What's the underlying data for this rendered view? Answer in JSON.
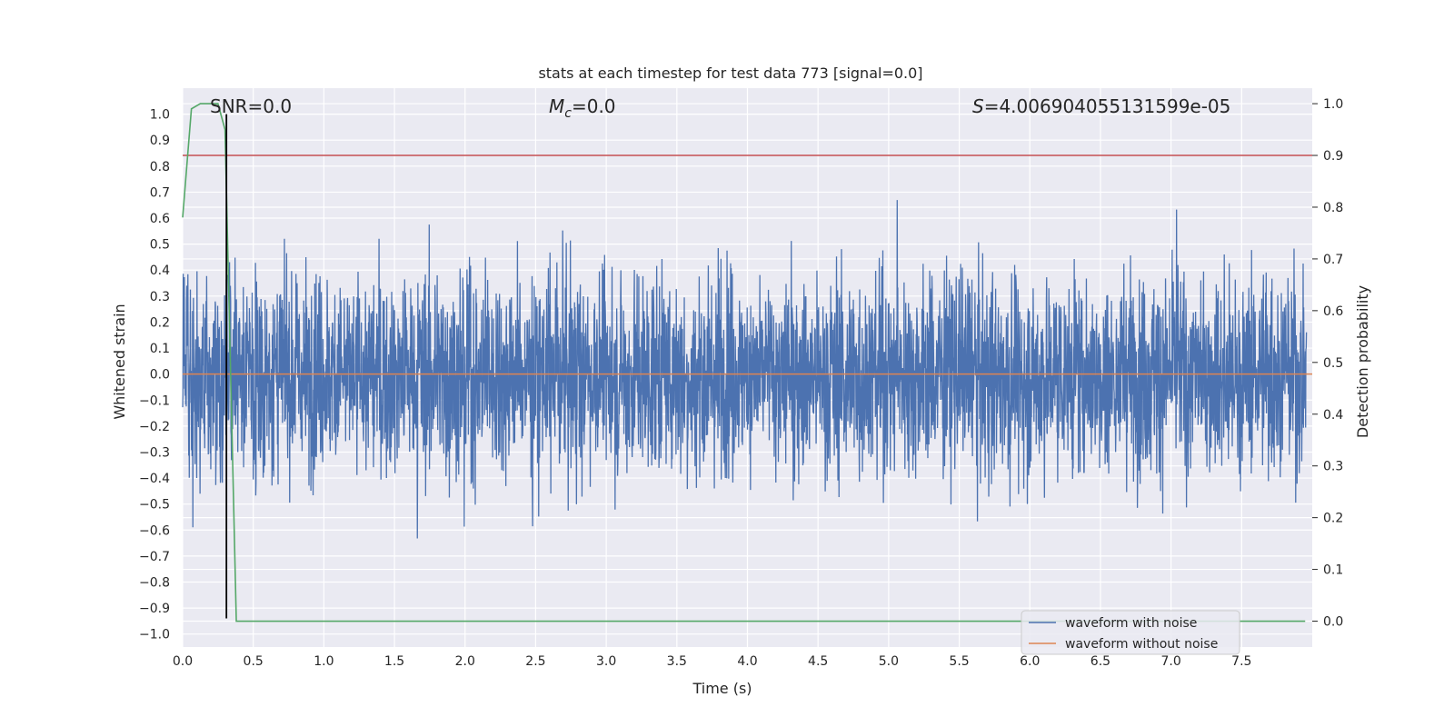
{
  "chart_data": {
    "type": "line",
    "title": "stats at each timestep for test data 773 [signal=0.0]",
    "xlabel": "Time (s)",
    "ylabel": "Whitened strain",
    "y2label": "Detection probability",
    "xlim": [
      0.0,
      8.0
    ],
    "ylim": [
      -1.05,
      1.1
    ],
    "y2lim": [
      -0.05,
      1.03
    ],
    "x_ticks": [
      "0.0",
      "0.5",
      "1.0",
      "1.5",
      "2.0",
      "2.5",
      "3.0",
      "3.5",
      "4.0",
      "4.5",
      "5.0",
      "5.5",
      "6.0",
      "6.5",
      "7.0",
      "7.5"
    ],
    "y_ticks": [
      "1.0",
      "0.9",
      "0.8",
      "0.7",
      "0.6",
      "0.5",
      "0.4",
      "0.3",
      "0.2",
      "0.1",
      "0.0",
      "−0.1",
      "−0.2",
      "−0.3",
      "−0.4",
      "−0.5",
      "−0.6",
      "−0.7",
      "−0.8",
      "−0.9",
      "−1.0"
    ],
    "y2_ticks": [
      "1.0",
      "0.9",
      "0.8",
      "0.7",
      "0.6",
      "0.5",
      "0.4",
      "0.3",
      "0.2",
      "0.1",
      "0.0"
    ],
    "annotations": {
      "snr": "SNR=0.0",
      "mc_sym": "M",
      "mc_sub": "c",
      "mc_val": "=0.0",
      "s_sym": "S",
      "s_val": "=4.006904055131599e-05"
    },
    "series": [
      {
        "name": "waveform with noise",
        "color": "#4c72b0",
        "kind": "noise",
        "sample_rate_hz": 512,
        "typical_envelope": [
          -0.45,
          0.45
        ],
        "extremes": [
          -0.94,
          1.0
        ]
      },
      {
        "name": "waveform without noise",
        "color": "#dd8452",
        "y_constant": 0.0
      },
      {
        "name": "detection probability",
        "color": "#55a868",
        "axis": "right",
        "x": [
          0.0,
          0.062,
          0.125,
          0.188,
          0.25,
          0.3,
          0.38,
          0.45,
          7.95
        ],
        "y": [
          0.78,
          0.99,
          1.0,
          1.0,
          1.0,
          0.95,
          0.0,
          0.0,
          0.0
        ]
      },
      {
        "name": "threshold",
        "color": "#c44e52",
        "axis": "right",
        "y_constant": 0.9
      },
      {
        "name": "detection time marker",
        "color": "#000000",
        "x_constant": 0.31,
        "y_range": [
          -0.94,
          1.0
        ]
      }
    ],
    "legend": {
      "position": "lower right",
      "entries": [
        {
          "label": "waveform with noise",
          "color": "#4c72b0"
        },
        {
          "label": "waveform without noise",
          "color": "#dd8452"
        }
      ]
    },
    "grid": true,
    "facecolor": "#eaeaf2"
  }
}
